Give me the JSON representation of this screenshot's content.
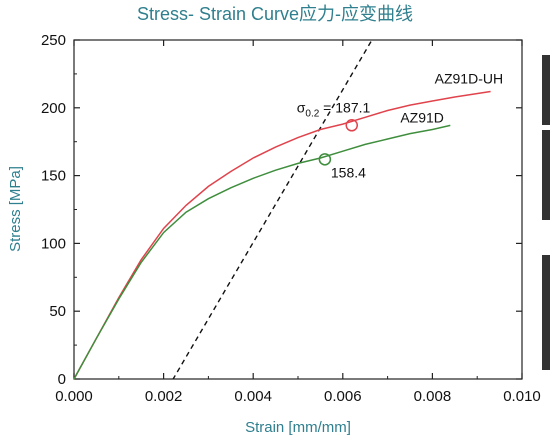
{
  "chart_data": {
    "type": "line",
    "title": "Stress- Strain Curve应力-应变曲线",
    "xlabel": "Strain  [mm/mm]",
    "ylabel": "Stress  [MPa]",
    "xlim": [
      0.0,
      0.01
    ],
    "ylim": [
      0,
      250
    ],
    "xticks": [
      "0.000",
      "0.002",
      "0.004",
      "0.006",
      "0.008",
      "0.010"
    ],
    "yticks": [
      "0",
      "50",
      "100",
      "150",
      "200",
      "250"
    ],
    "grid": false,
    "series": [
      {
        "name": "AZ91D-UH",
        "color": "#e0434b",
        "points": [
          [
            0,
            0
          ],
          [
            0.0005,
            30
          ],
          [
            0.001,
            60
          ],
          [
            0.0015,
            88
          ],
          [
            0.002,
            111
          ],
          [
            0.0025,
            128
          ],
          [
            0.003,
            142
          ],
          [
            0.0035,
            153
          ],
          [
            0.004,
            163
          ],
          [
            0.0045,
            171
          ],
          [
            0.005,
            178
          ],
          [
            0.0055,
            184
          ],
          [
            0.006,
            188
          ],
          [
            0.0065,
            193
          ],
          [
            0.007,
            198
          ],
          [
            0.0075,
            202
          ],
          [
            0.008,
            205
          ],
          [
            0.0085,
            208
          ],
          [
            0.0093,
            212
          ]
        ]
      },
      {
        "name": "AZ91D",
        "color": "#3f8e3d",
        "points": [
          [
            0,
            0
          ],
          [
            0.0005,
            30
          ],
          [
            0.001,
            59
          ],
          [
            0.0015,
            86
          ],
          [
            0.002,
            108
          ],
          [
            0.0025,
            123
          ],
          [
            0.003,
            133
          ],
          [
            0.0035,
            141
          ],
          [
            0.004,
            148
          ],
          [
            0.0045,
            154
          ],
          [
            0.005,
            159
          ],
          [
            0.0055,
            163
          ],
          [
            0.006,
            168
          ],
          [
            0.0065,
            173
          ],
          [
            0.007,
            177
          ],
          [
            0.0075,
            181
          ],
          [
            0.008,
            184
          ],
          [
            0.0084,
            187
          ]
        ]
      }
    ],
    "offset_line": {
      "style": "dashed",
      "color": "#111111",
      "points": [
        [
          0.002,
          -12
        ],
        [
          0.00665,
          250
        ]
      ]
    },
    "annotations": [
      {
        "id": "uh",
        "prefix": "σ",
        "subscript": "0.2",
        "suffix": " = 187.1",
        "x": 0.0062,
        "y": 187.1,
        "color": "#e0434b"
      },
      {
        "id": "base",
        "text": "158.4",
        "x": 0.0056,
        "y": 162,
        "color": "#3f8e3d"
      }
    ]
  }
}
